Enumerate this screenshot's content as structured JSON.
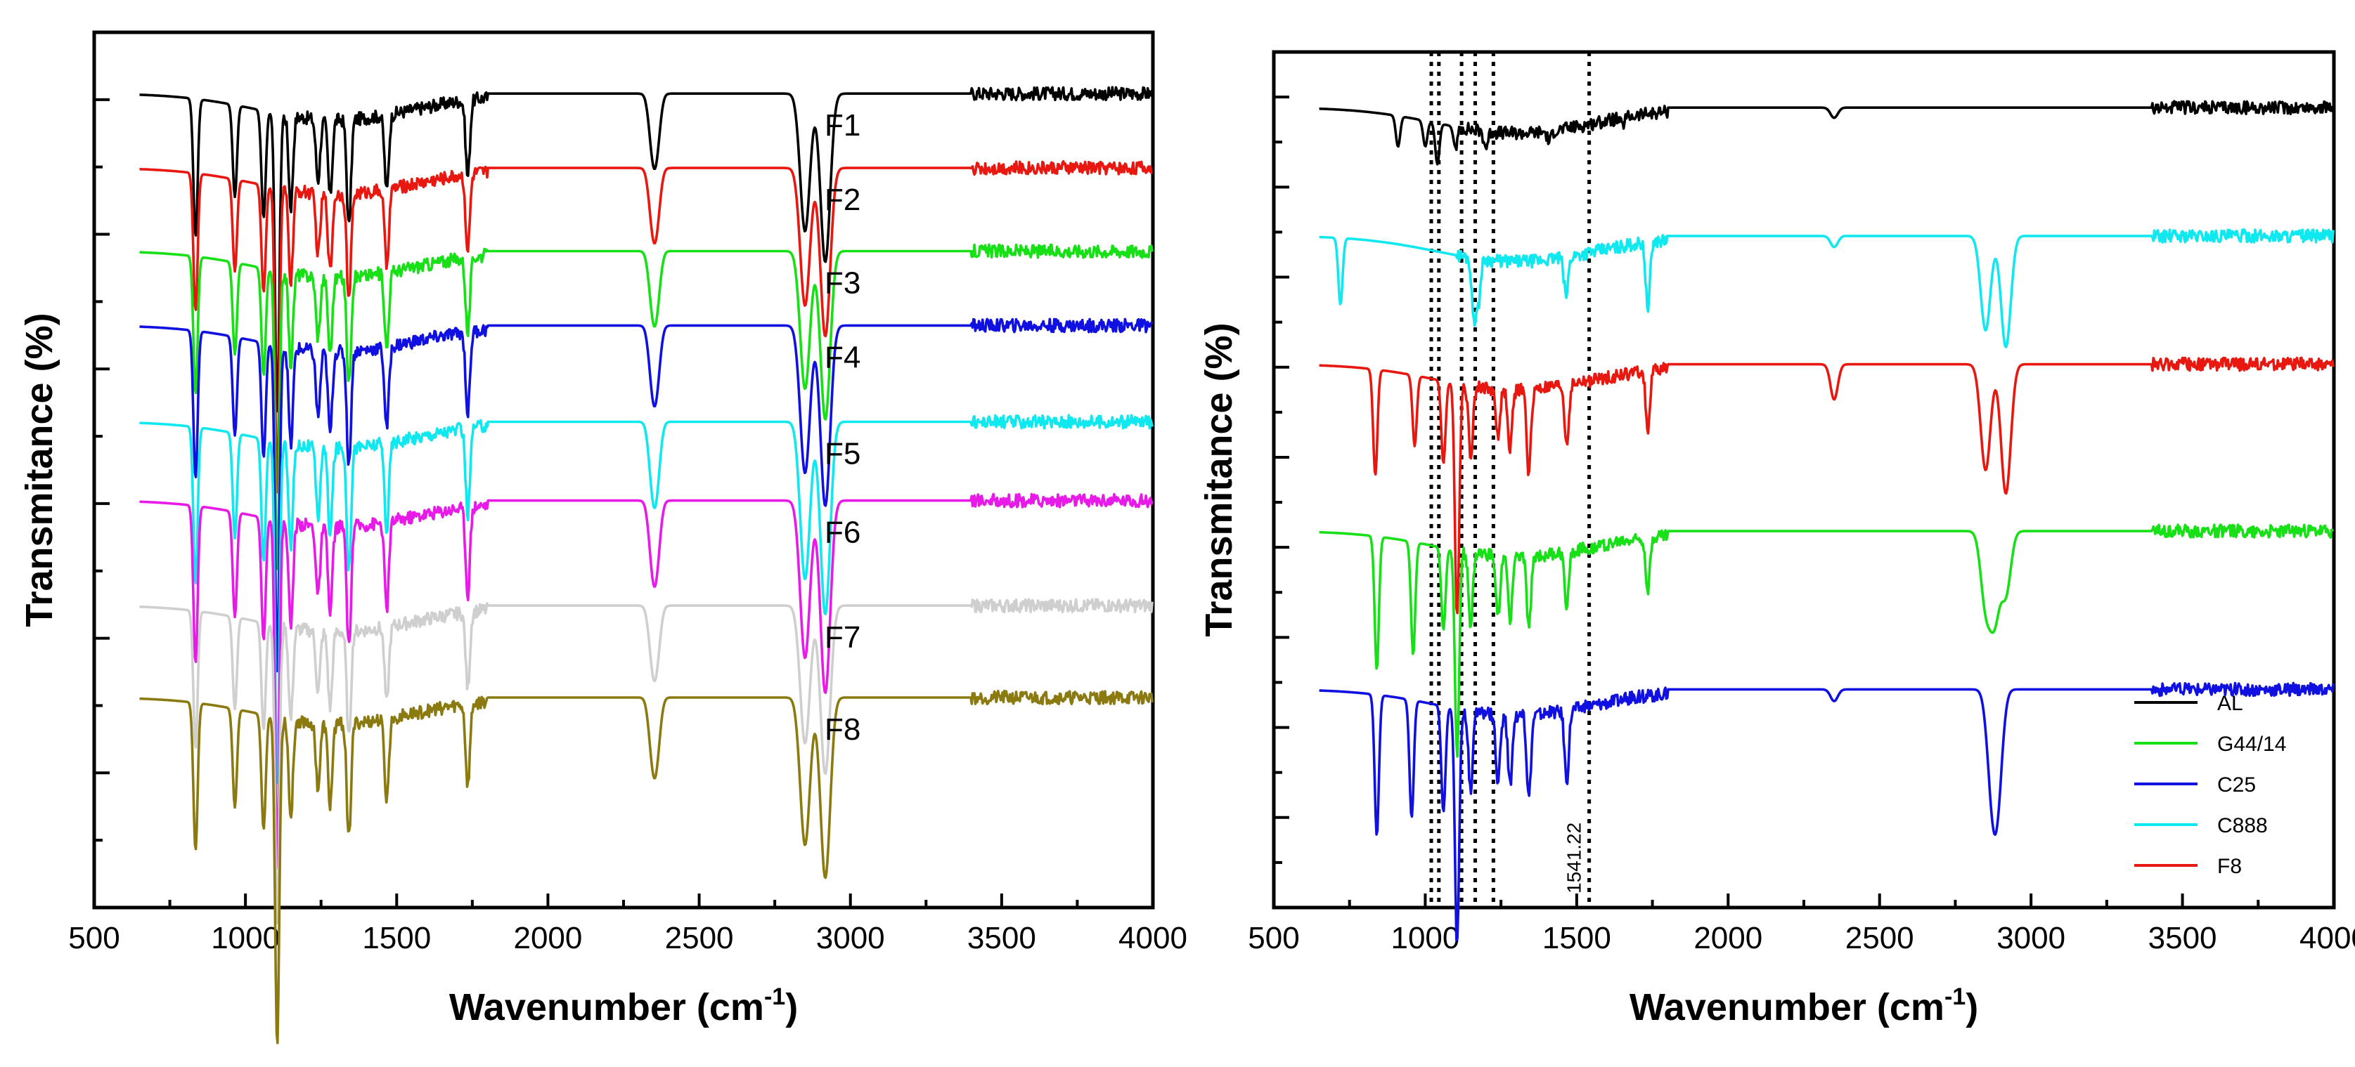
{
  "chart_data": [
    {
      "type": "line",
      "panel": "left",
      "xlabel": "Wavenumber (cm",
      "xlabel_sup": "-1",
      "xlabel_close": ")",
      "ylabel": "Transmitance (%)",
      "xlim": [
        500,
        4000
      ],
      "xticks": [
        500,
        1000,
        1500,
        2000,
        2500,
        3000,
        3500,
        4000
      ],
      "x_range": [
        650,
        4000
      ],
      "peaks": [
        [
          835,
          0.45
        ],
        [
          965,
          0.3
        ],
        [
          1060,
          0.35
        ],
        [
          1105,
          1.0
        ],
        [
          1150,
          0.3
        ],
        [
          1240,
          0.2
        ],
        [
          1280,
          0.25
        ],
        [
          1342,
          0.35
        ],
        [
          1467,
          0.25
        ],
        [
          1735,
          0.25
        ],
        [
          2345,
          0.15
        ],
        [
          2360,
          0.15
        ],
        [
          2850,
          0.45
        ],
        [
          2917,
          0.55
        ]
      ],
      "series": [
        {
          "name": "F1",
          "label": "F1",
          "color": "#000000",
          "baseline": 0.93,
          "depth": 0.7
        },
        {
          "name": "F2",
          "label": "F2",
          "color": "#e8170f",
          "baseline": 0.845,
          "depth": 0.7
        },
        {
          "name": "F3",
          "label": "F3",
          "color": "#17e017",
          "baseline": 0.75,
          "depth": 0.7
        },
        {
          "name": "F4",
          "label": "F4",
          "color": "#1010e0",
          "baseline": 0.665,
          "depth": 0.75
        },
        {
          "name": "F5",
          "label": "F5",
          "color": "#10e8f0",
          "baseline": 0.555,
          "depth": 0.8
        },
        {
          "name": "F6",
          "label": "F6",
          "color": "#e81ae8",
          "baseline": 0.465,
          "depth": 0.8
        },
        {
          "name": "F7",
          "label": "F7",
          "color": "#cfcfcf",
          "baseline": 0.345,
          "depth": 0.7
        },
        {
          "name": "F8",
          "label": "F8",
          "color": "#8a7a10",
          "baseline": 0.24,
          "depth": 0.75
        }
      ]
    },
    {
      "type": "line",
      "panel": "right",
      "xlabel": "Wavenumber (cm",
      "xlabel_sup": "-1",
      "xlabel_close": ")",
      "ylabel": "Transmitance (%)",
      "xlim": [
        500,
        4000
      ],
      "xticks": [
        500,
        1000,
        1500,
        2000,
        2500,
        3000,
        3500,
        4000
      ],
      "x_range": [
        650,
        4000
      ],
      "reference_lines": [
        1020,
        1045,
        1120,
        1165,
        1225,
        1541.22
      ],
      "reference_annotation": "1541.22",
      "series": [
        {
          "name": "AL",
          "color": "#000000",
          "baseline": 0.935,
          "depth": 0.12,
          "peaks": [
            [
              910,
              0.6
            ],
            [
              1000,
              0.5
            ],
            [
              1040,
              0.8
            ],
            [
              1100,
              0.4
            ],
            [
              1200,
              0.3
            ],
            [
              1410,
              0.2
            ],
            [
              1650,
              0.15
            ],
            [
              2350,
              0.2
            ]
          ]
        },
        {
          "name": "C888",
          "color": "#10e8f0",
          "baseline": 0.785,
          "depth": 0.26,
          "peaks": [
            [
              720,
              0.6
            ],
            [
              1160,
              0.5
            ],
            [
              1175,
              0.4
            ],
            [
              1465,
              0.35
            ],
            [
              1735,
              0.6
            ],
            [
              2350,
              0.1
            ],
            [
              2850,
              0.85
            ],
            [
              2917,
              1.0
            ]
          ]
        },
        {
          "name": "F8",
          "color": "#e8170f",
          "baseline": 0.635,
          "depth": 0.55,
          "peaks": [
            [
              835,
              0.45
            ],
            [
              965,
              0.3
            ],
            [
              1060,
              0.35
            ],
            [
              1105,
              1.0
            ],
            [
              1150,
              0.3
            ],
            [
              1240,
              0.2
            ],
            [
              1280,
              0.25
            ],
            [
              1342,
              0.35
            ],
            [
              1467,
              0.25
            ],
            [
              1735,
              0.25
            ],
            [
              2350,
              0.15
            ],
            [
              2850,
              0.45
            ],
            [
              2917,
              0.55
            ]
          ]
        },
        {
          "name": "G44/14",
          "color": "#17e017",
          "baseline": 0.44,
          "depth": 0.48,
          "peaks": [
            [
              840,
              0.65
            ],
            [
              960,
              0.55
            ],
            [
              1060,
              0.4
            ],
            [
              1105,
              1.0
            ],
            [
              1150,
              0.35
            ],
            [
              1240,
              0.3
            ],
            [
              1280,
              0.3
            ],
            [
              1342,
              0.35
            ],
            [
              1467,
              0.25
            ],
            [
              1735,
              0.25
            ],
            [
              2850,
              0.35
            ],
            [
              2880,
              0.4
            ],
            [
              2917,
              0.3
            ]
          ]
        },
        {
          "name": "C25",
          "color": "#1010e0",
          "baseline": 0.255,
          "depth": 0.55,
          "peaks": [
            [
              840,
              0.6
            ],
            [
              955,
              0.5
            ],
            [
              1060,
              0.45
            ],
            [
              1105,
              1.0
            ],
            [
              1150,
              0.35
            ],
            [
              1240,
              0.3
            ],
            [
              1280,
              0.3
            ],
            [
              1342,
              0.35
            ],
            [
              1467,
              0.3
            ],
            [
              2350,
              0.05
            ],
            [
              2870,
              0.35
            ],
            [
              2890,
              0.4
            ]
          ]
        }
      ],
      "legend": {
        "position": "bottom-right",
        "entries": [
          {
            "label": "AL",
            "color": "#000000"
          },
          {
            "label": "G44/14",
            "color": "#17e017"
          },
          {
            "label": "C25",
            "color": "#1010e0"
          },
          {
            "label": "C888",
            "color": "#10e8f0"
          },
          {
            "label": "F8",
            "color": "#e8170f"
          }
        ]
      }
    }
  ]
}
